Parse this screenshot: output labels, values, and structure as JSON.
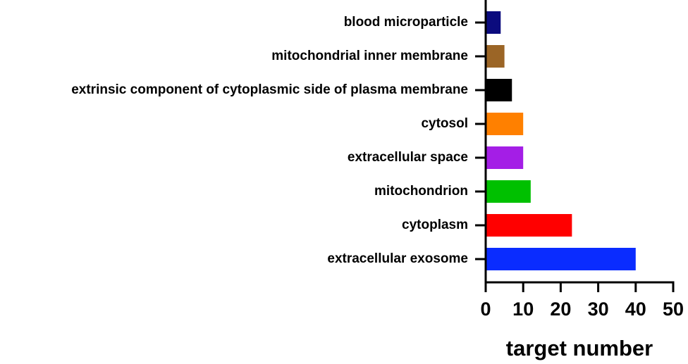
{
  "chart_data": {
    "type": "barh",
    "categories": [
      "blood microparticle",
      "mitochondrial inner membrane",
      "extrinsic component of cytoplasmic side of plasma membrane",
      "cytosol",
      "extracellular space",
      "mitochondrion",
      "cytoplasm",
      "extracellular exosome"
    ],
    "values": [
      4,
      5,
      7,
      10,
      10,
      12,
      23,
      40
    ],
    "colors": [
      "#0b0b7e",
      "#9b6526",
      "#000000",
      "#ff8000",
      "#a41ee6",
      "#00c000",
      "#ff0000",
      "#0a2cff"
    ],
    "xlabel": "target number",
    "xlim": [
      0,
      50
    ],
    "xticks": [
      0,
      10,
      20,
      30,
      40,
      50
    ]
  }
}
